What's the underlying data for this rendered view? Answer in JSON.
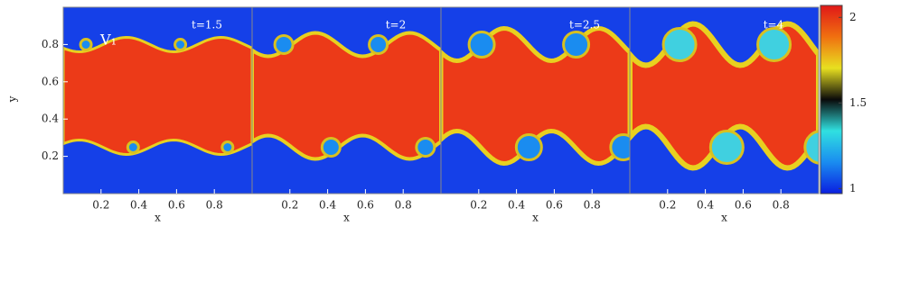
{
  "chart_data": [
    {
      "type": "heatmap",
      "annotation": "t=1.5",
      "label": "V₁",
      "xlabel": "x",
      "ylabel": "y",
      "xlim": [
        0,
        1
      ],
      "ylim": [
        0,
        1
      ],
      "xticks": [
        0.2,
        0.4,
        0.6,
        0.8
      ],
      "yticks": [
        0.2,
        0.4,
        0.6,
        0.8
      ]
    },
    {
      "type": "heatmap",
      "annotation": "t=2",
      "xlabel": "x",
      "xlim": [
        0,
        1
      ],
      "ylim": [
        0,
        1
      ],
      "xticks": [
        0.2,
        0.4,
        0.6,
        0.8
      ]
    },
    {
      "type": "heatmap",
      "annotation": "t=2.5",
      "xlabel": "x",
      "xlim": [
        0,
        1
      ],
      "ylim": [
        0,
        1
      ],
      "xticks": [
        0.2,
        0.4,
        0.6,
        0.8
      ]
    },
    {
      "type": "heatmap",
      "annotation": "t=4",
      "xlabel": "x",
      "xlim": [
        0,
        1
      ],
      "ylim": [
        0,
        1
      ],
      "xticks": [
        0.2,
        0.4,
        0.6,
        0.8
      ]
    },
    {
      "type": "colorbar",
      "clim": [
        0.97,
        2.07
      ],
      "cticks": [
        1,
        1.5,
        2
      ],
      "colormap": [
        "#0a1ee0",
        "#1a8cf0",
        "#30e0e0",
        "#0a0a0a",
        "#e8e020",
        "#f07010",
        "#e01818"
      ]
    }
  ]
}
